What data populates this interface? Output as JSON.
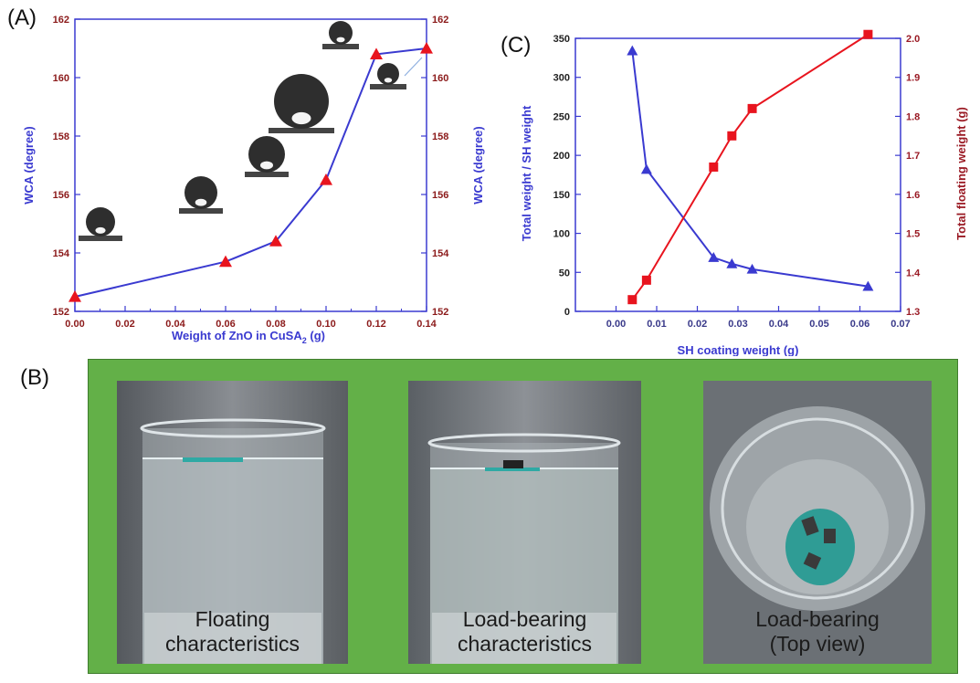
{
  "panels": {
    "a_label": "(A)",
    "b_label": "(B)",
    "c_label": "(C)"
  },
  "chart_data": [
    {
      "type": "line",
      "panel": "(A)",
      "x": [
        0.0,
        0.06,
        0.08,
        0.1,
        0.12,
        0.14
      ],
      "series": [
        {
          "values": [
            152.5,
            153.7,
            154.4,
            156.5,
            160.8,
            161.0
          ],
          "color": "#3a3ad0",
          "marker_color": "#e8141e",
          "marker": "triangle"
        }
      ],
      "xlabel": "Weight of ZnO in CuSA",
      "xlabel_sub": "2",
      "xlabel_unit": " (g)",
      "ylabel": "WCA (degree)",
      "ylabel_right": "WCA (degree)",
      "xlim": [
        0,
        0.14
      ],
      "ylim": [
        152,
        162
      ],
      "x_ticks": [
        "0.00",
        "0.02",
        "0.04",
        "0.06",
        "0.08",
        "0.10",
        "0.12",
        "0.14"
      ],
      "y_ticks": [
        "152",
        "154",
        "156",
        "158",
        "160",
        "162"
      ],
      "grid": false,
      "annotations": "droplet contact-angle photos above data points"
    },
    {
      "type": "line",
      "panel": "(C)",
      "x": [
        0.004,
        0.0075,
        0.024,
        0.0285,
        0.0335,
        0.062
      ],
      "series": [
        {
          "axis": "left",
          "values": [
            334,
            182,
            69,
            61,
            54,
            32
          ],
          "color": "#3a3ad0",
          "marker": "triangle"
        },
        {
          "axis": "right",
          "values": [
            1.33,
            1.38,
            1.67,
            1.75,
            1.82,
            2.01
          ],
          "color": "#e8141e",
          "marker": "square"
        }
      ],
      "xlabel": "SH coating weight (g)",
      "ylabel": "Total weight / SH weight",
      "ylabel_right": "Total floating weight (g)",
      "xlim": [
        -0.01,
        0.07
      ],
      "ylim": [
        0,
        350
      ],
      "ylim_right": [
        1.3,
        2.0
      ],
      "x_ticks": [
        "0.00",
        "0.01",
        "0.02",
        "0.03",
        "0.04",
        "0.05",
        "0.06",
        "0.07"
      ],
      "y_ticks": [
        "0",
        "50",
        "100",
        "150",
        "200",
        "250",
        "300",
        "350"
      ],
      "y_ticks_right": [
        "1.3",
        "1.4",
        "1.5",
        "1.6",
        "1.7",
        "1.8",
        "1.9",
        "2.0"
      ],
      "grid": false
    }
  ],
  "photos": [
    {
      "caption_line1": "Floating",
      "caption_line2": "characteristics"
    },
    {
      "caption_line1": "Load-bearing",
      "caption_line2": "characteristics"
    },
    {
      "caption_line1": "Load-bearing",
      "caption_line2": "(Top view)"
    }
  ],
  "colors": {
    "axis_blue": "#3a3ad0",
    "tick_red": "#8b1a1a",
    "series_red": "#e8141e",
    "background_green": "#63b048"
  }
}
